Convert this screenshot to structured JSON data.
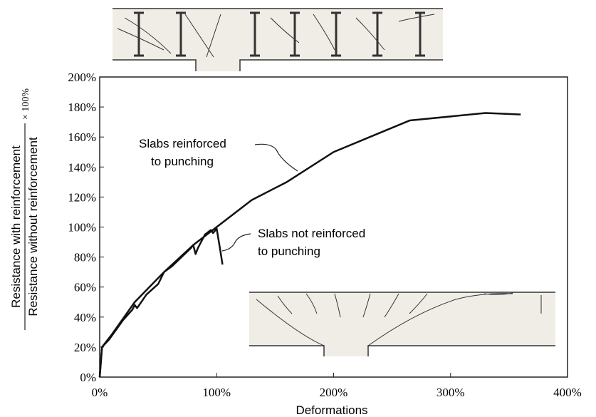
{
  "chart_data": {
    "type": "line",
    "y_label_numerator": "Resistance with reinforcement",
    "y_label_denominator": "Resistance without reinforcement",
    "y_label_factor": "× 100%",
    "x_label": "Deformations",
    "annotations": [
      {
        "lines": [
          "Slabs reinforced",
          "to punching"
        ]
      },
      {
        "lines": [
          "Slabs not reinforced",
          "to punching"
        ]
      }
    ],
    "xlim": [
      0,
      400
    ],
    "xticks": [
      {
        "value": 0,
        "label": "0%"
      },
      {
        "value": 100,
        "label": "100%"
      },
      {
        "value": 200,
        "label": "200%"
      },
      {
        "value": 300,
        "label": "300%"
      },
      {
        "value": 400,
        "label": "400%"
      }
    ],
    "ylim": [
      0,
      200
    ],
    "yticks": [
      {
        "value": 0,
        "label": "0%"
      },
      {
        "value": 20,
        "label": "20%"
      },
      {
        "value": 40,
        "label": "40%"
      },
      {
        "value": 60,
        "label": "60%"
      },
      {
        "value": 80,
        "label": "80%"
      },
      {
        "value": 100,
        "label": "100%"
      },
      {
        "value": 120,
        "label": "120%"
      },
      {
        "value": 140,
        "label": "140%"
      },
      {
        "value": 160,
        "label": "160%"
      },
      {
        "value": 180,
        "label": "180%"
      },
      {
        "value": 200,
        "label": "200%"
      }
    ],
    "grid": false,
    "series": [
      {
        "color": "#111111",
        "x": [
          0,
          2,
          10,
          30,
          55,
          80,
          100,
          130,
          160,
          200,
          265,
          330,
          360
        ],
        "values": [
          0,
          20,
          28,
          50,
          70,
          88,
          100,
          118,
          130,
          150,
          171,
          176,
          175
        ]
      },
      {
        "color": "#111111",
        "x": [
          0,
          2,
          8,
          20,
          28,
          30,
          32,
          40,
          50,
          55,
          62,
          70,
          78,
          80,
          82,
          84,
          90,
          95,
          97,
          100,
          103,
          105
        ],
        "values": [
          0,
          20,
          25,
          38,
          45,
          48,
          46,
          55,
          62,
          70,
          74,
          80,
          86,
          88,
          82,
          86,
          95,
          98,
          96,
          99,
          85,
          75
        ]
      }
    ]
  }
}
